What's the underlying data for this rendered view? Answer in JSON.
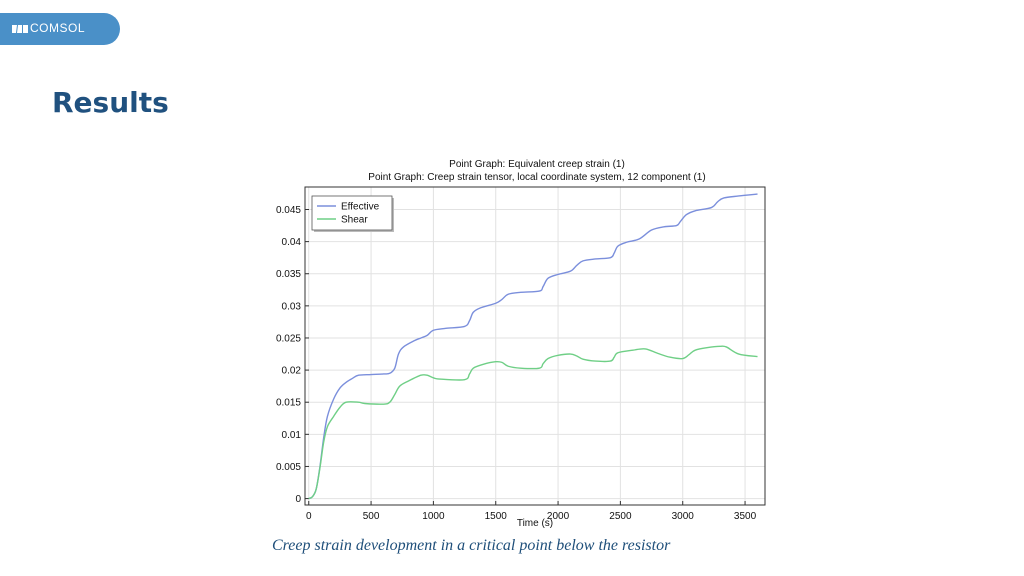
{
  "header": {
    "logo_text": "COMSOL",
    "logo_icon": "comsol-logo-icon",
    "brand_color": "#4a90c8"
  },
  "slide": {
    "title": "Results",
    "caption": "Creep strain development in a critical point below the resistor"
  },
  "chart_data": {
    "type": "line",
    "title": "Point Graph: Equivalent creep strain (1)",
    "subtitle": "Point Graph: Creep strain tensor, local coordinate system, 12 component (1)",
    "xlabel": "Time (s)",
    "ylabel": "",
    "xlim": [
      -30,
      3660
    ],
    "ylim": [
      -0.001,
      0.0485
    ],
    "xticks": [
      0,
      500,
      1000,
      1500,
      2000,
      2500,
      3000,
      3500
    ],
    "yticks": [
      0,
      0.005,
      0.01,
      0.015,
      0.02,
      0.025,
      0.03,
      0.035,
      0.04,
      0.045
    ],
    "ytick_labels": [
      "0",
      "0.005",
      "0.01",
      "0.015",
      "0.02",
      "0.025",
      "0.03",
      "0.035",
      "0.04",
      "0.045"
    ],
    "grid": true,
    "legend_position": "top-left",
    "series": [
      {
        "name": "Effective",
        "color": "#7b8fdc",
        "points": [
          [
            0,
            0
          ],
          [
            30,
            0.0003
          ],
          [
            60,
            0.0015
          ],
          [
            90,
            0.005
          ],
          [
            120,
            0.0095
          ],
          [
            150,
            0.0128
          ],
          [
            200,
            0.0155
          ],
          [
            250,
            0.0172
          ],
          [
            300,
            0.0181
          ],
          [
            350,
            0.0187
          ],
          [
            400,
            0.0192
          ],
          [
            500,
            0.0193
          ],
          [
            600,
            0.0194
          ],
          [
            650,
            0.0195
          ],
          [
            690,
            0.0203
          ],
          [
            720,
            0.0225
          ],
          [
            760,
            0.0236
          ],
          [
            850,
            0.0246
          ],
          [
            900,
            0.025
          ],
          [
            950,
            0.0254
          ],
          [
            1000,
            0.0262
          ],
          [
            1100,
            0.0265
          ],
          [
            1250,
            0.0268
          ],
          [
            1290,
            0.0277
          ],
          [
            1320,
            0.029
          ],
          [
            1380,
            0.0297
          ],
          [
            1500,
            0.0304
          ],
          [
            1550,
            0.031
          ],
          [
            1600,
            0.0318
          ],
          [
            1700,
            0.0321
          ],
          [
            1850,
            0.0323
          ],
          [
            1880,
            0.033
          ],
          [
            1920,
            0.0343
          ],
          [
            2000,
            0.0349
          ],
          [
            2100,
            0.0354
          ],
          [
            2150,
            0.0363
          ],
          [
            2200,
            0.037
          ],
          [
            2300,
            0.0373
          ],
          [
            2420,
            0.0375
          ],
          [
            2450,
            0.0382
          ],
          [
            2480,
            0.0393
          ],
          [
            2550,
            0.0399
          ],
          [
            2650,
            0.0404
          ],
          [
            2750,
            0.0418
          ],
          [
            2850,
            0.0423
          ],
          [
            2950,
            0.0425
          ],
          [
            2980,
            0.0431
          ],
          [
            3030,
            0.0442
          ],
          [
            3100,
            0.0448
          ],
          [
            3230,
            0.0453
          ],
          [
            3280,
            0.0462
          ],
          [
            3330,
            0.0468
          ],
          [
            3450,
            0.0471
          ],
          [
            3600,
            0.0474
          ]
        ]
      },
      {
        "name": "Shear",
        "color": "#6fcf86",
        "points": [
          [
            0,
            0
          ],
          [
            30,
            0.0003
          ],
          [
            60,
            0.0015
          ],
          [
            90,
            0.0048
          ],
          [
            120,
            0.0088
          ],
          [
            150,
            0.0112
          ],
          [
            200,
            0.0128
          ],
          [
            250,
            0.0142
          ],
          [
            300,
            0.015
          ],
          [
            400,
            0.015
          ],
          [
            450,
            0.0148
          ],
          [
            600,
            0.0147
          ],
          [
            650,
            0.015
          ],
          [
            690,
            0.0162
          ],
          [
            730,
            0.0175
          ],
          [
            800,
            0.0183
          ],
          [
            900,
            0.0192
          ],
          [
            950,
            0.0192
          ],
          [
            1000,
            0.0188
          ],
          [
            1050,
            0.0186
          ],
          [
            1250,
            0.0185
          ],
          [
            1290,
            0.0194
          ],
          [
            1320,
            0.0203
          ],
          [
            1400,
            0.0209
          ],
          [
            1500,
            0.0213
          ],
          [
            1550,
            0.0212
          ],
          [
            1600,
            0.0206
          ],
          [
            1700,
            0.0203
          ],
          [
            1850,
            0.0203
          ],
          [
            1880,
            0.021
          ],
          [
            1920,
            0.0218
          ],
          [
            2000,
            0.0223
          ],
          [
            2100,
            0.0225
          ],
          [
            2150,
            0.0222
          ],
          [
            2200,
            0.0217
          ],
          [
            2300,
            0.0214
          ],
          [
            2420,
            0.0214
          ],
          [
            2450,
            0.022
          ],
          [
            2480,
            0.0227
          ],
          [
            2600,
            0.0231
          ],
          [
            2700,
            0.0233
          ],
          [
            2800,
            0.0226
          ],
          [
            2900,
            0.022
          ],
          [
            3000,
            0.0218
          ],
          [
            3050,
            0.0224
          ],
          [
            3100,
            0.0231
          ],
          [
            3200,
            0.0235
          ],
          [
            3300,
            0.0237
          ],
          [
            3350,
            0.0236
          ],
          [
            3450,
            0.0225
          ],
          [
            3600,
            0.0221
          ]
        ]
      }
    ]
  }
}
